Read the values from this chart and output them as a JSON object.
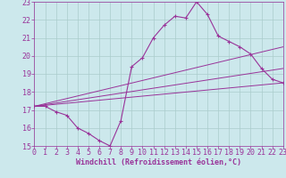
{
  "xlabel": "Windchill (Refroidissement éolien,°C)",
  "background_color": "#cce8ec",
  "grid_color": "#aacccc",
  "line_color": "#993399",
  "xlim": [
    0,
    23
  ],
  "ylim": [
    15,
    23
  ],
  "xticks": [
    0,
    1,
    2,
    3,
    4,
    5,
    6,
    7,
    8,
    9,
    10,
    11,
    12,
    13,
    14,
    15,
    16,
    17,
    18,
    19,
    20,
    21,
    22,
    23
  ],
  "yticks": [
    15,
    16,
    17,
    18,
    19,
    20,
    21,
    22,
    23
  ],
  "main_line": {
    "x": [
      0,
      1,
      2,
      3,
      4,
      5,
      6,
      7,
      8,
      9,
      10,
      11,
      12,
      13,
      14,
      15,
      16,
      17,
      18,
      19,
      20,
      21,
      22,
      23
    ],
    "y": [
      17.2,
      17.2,
      16.9,
      16.7,
      16.0,
      15.7,
      15.3,
      15.0,
      16.4,
      19.4,
      19.9,
      21.0,
      21.7,
      22.2,
      22.1,
      23.0,
      22.3,
      21.1,
      20.8,
      20.5,
      20.1,
      19.3,
      18.7,
      18.5
    ]
  },
  "trend_lines": [
    {
      "x": [
        0,
        23
      ],
      "y": [
        17.2,
        20.5
      ]
    },
    {
      "x": [
        0,
        23
      ],
      "y": [
        17.2,
        19.3
      ]
    },
    {
      "x": [
        0,
        23
      ],
      "y": [
        17.2,
        18.5
      ]
    }
  ],
  "tick_fontsize": 6,
  "xlabel_fontsize": 6
}
